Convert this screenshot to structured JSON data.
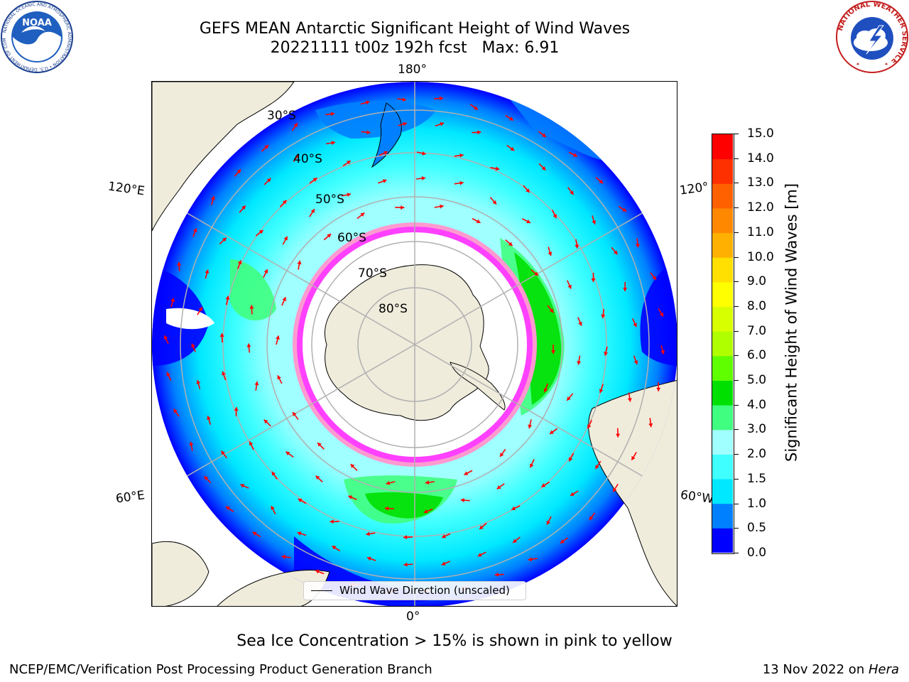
{
  "title": {
    "line1": "GEFS MEAN Antarctic Significant Height of Wind Waves",
    "line2": "20221111 t00z 192h fcst   Max: 6.91"
  },
  "logos": {
    "left": {
      "text": "NOAA",
      "ring_text": "NATIONAL OCEANIC AND ATMOSPHERIC ADMINISTRATION • U.S. DEPARTMENT OF COMMERCE"
    },
    "right": {
      "ring_text": "NATIONAL WEATHER SERVICE"
    }
  },
  "map": {
    "projection": "south-polar-stereographic",
    "longitude_labels": [
      "180°",
      "120°E",
      "120°",
      "60°E",
      "60°W",
      "0°"
    ],
    "latitude_labels": [
      "30°S",
      "40°S",
      "50°S",
      "60°S",
      "70°S",
      "80°S"
    ],
    "legend_entry": "Wind Wave Direction (unscaled)",
    "colors": {
      "land": "#efecdc",
      "ice": "#ffffff",
      "ice_edge": [
        "#ff40ff",
        "#ff9ad0",
        "#f5c06e"
      ],
      "arrow": "#ff0000",
      "grid": "#b0b0b0"
    }
  },
  "colorbar": {
    "label": "Significant Height of Wind Waves [m]",
    "ticks": [
      "0.0",
      "0.5",
      "1.0",
      "1.5",
      "2.0",
      "3.0",
      "4.0",
      "5.0",
      "6.0",
      "7.0",
      "8.0",
      "9.0",
      "10.0",
      "11.0",
      "12.0",
      "13.0",
      "14.0",
      "15.0"
    ],
    "colors": [
      "#0000ff",
      "#0080ff",
      "#00e8ff",
      "#40ffff",
      "#a0ffff",
      "#40ff80",
      "#00e000",
      "#60ff00",
      "#b0ff00",
      "#d8ff00",
      "#ffff00",
      "#ffe000",
      "#ffb000",
      "#ff8800",
      "#ff6000",
      "#ff3000",
      "#ff0000"
    ]
  },
  "notes": {
    "sea_ice": "Sea Ice Concentration > 15% is shown in pink to yellow"
  },
  "footer": {
    "left": "NCEP/EMC/Verification Post Processing Product Generation Branch",
    "right_prefix": "13 Nov 2022 on ",
    "right_machine": "Hera"
  }
}
